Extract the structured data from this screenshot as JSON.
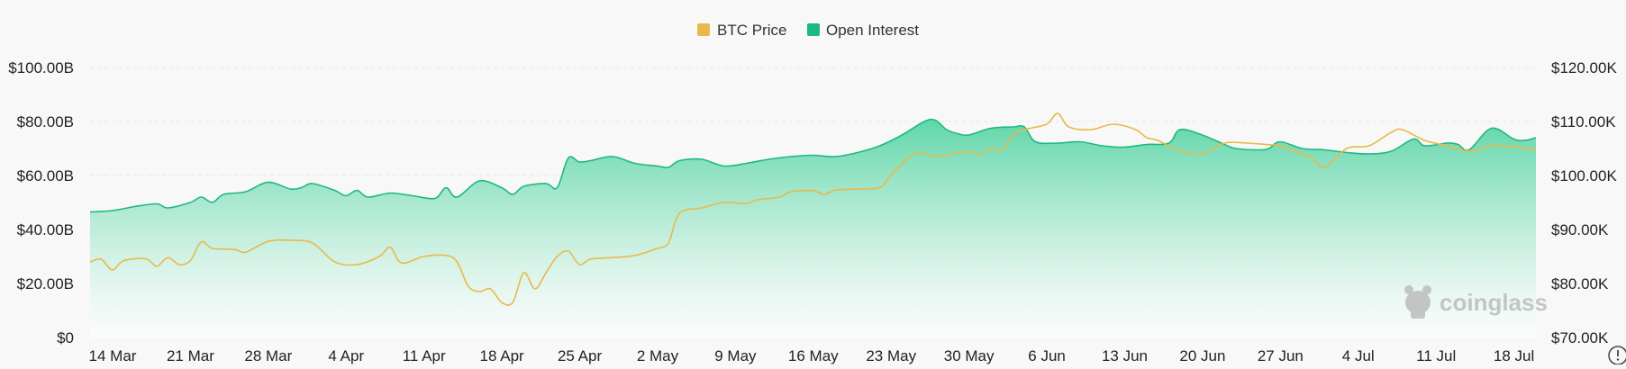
{
  "colors": {
    "btc_price": "#e8b94a",
    "open_interest_line": "#1db981",
    "open_interest_fill_top": "#5fd6a8",
    "open_interest_fill_bottom": "#ffffff",
    "grid": "#e6e6e6"
  },
  "watermark": {
    "text": "coinglass"
  },
  "chart_data": {
    "type": "area",
    "title": "",
    "legend": {
      "position": "top-center",
      "items": [
        "BTC Price",
        "Open Interest"
      ]
    },
    "grid": true,
    "x": [
      "14 Mar",
      "21 Mar",
      "28 Mar",
      "4 Apr",
      "11 Apr",
      "18 Apr",
      "25 Apr",
      "2 May",
      "9 May",
      "16 May",
      "23 May",
      "30 May",
      "6 Jun",
      "13 Jun",
      "20 Jun",
      "27 Jun",
      "4 Jul",
      "11 Jul",
      "18 Jul"
    ],
    "x_range": [
      "2025-03-14",
      "2025-07-22"
    ],
    "y_left": {
      "range": [
        0,
        100
      ],
      "ticks": [
        0,
        20,
        40,
        60,
        80,
        100
      ],
      "tick_labels": [
        "$0",
        "$20.00B",
        "$40.00B",
        "$60.00B",
        "$80.00B",
        "$100.00B"
      ]
    },
    "y_right": {
      "range": [
        70000,
        120000
      ],
      "ticks": [
        70000,
        80000,
        90000,
        100000,
        110000,
        120000
      ],
      "tick_labels": [
        "$70.00K",
        "$80.00K",
        "$90.00K",
        "$100.00K",
        "$110.00K",
        "$120.00K"
      ]
    },
    "series": [
      {
        "name": "Open Interest",
        "axis": "left",
        "unit": "B USD",
        "points": [
          [
            "2025-03-14",
            46.5
          ],
          [
            "2025-03-16",
            47.0
          ],
          [
            "2025-03-18",
            48.5
          ],
          [
            "2025-03-20",
            49.5
          ],
          [
            "2025-03-21",
            48.0
          ],
          [
            "2025-03-23",
            50.0
          ],
          [
            "2025-03-24",
            52.0
          ],
          [
            "2025-03-25",
            50.0
          ],
          [
            "2025-03-26",
            53.0
          ],
          [
            "2025-03-28",
            54.0
          ],
          [
            "2025-03-30",
            57.5
          ],
          [
            "2025-04-01",
            55.0
          ],
          [
            "2025-04-02",
            55.5
          ],
          [
            "2025-04-03",
            57.0
          ],
          [
            "2025-04-05",
            54.5
          ],
          [
            "2025-04-06",
            52.5
          ],
          [
            "2025-04-07",
            54.5
          ],
          [
            "2025-04-08",
            52.0
          ],
          [
            "2025-04-10",
            53.5
          ],
          [
            "2025-04-12",
            52.5
          ],
          [
            "2025-04-14",
            51.5
          ],
          [
            "2025-04-15",
            55.5
          ],
          [
            "2025-04-16",
            52.0
          ],
          [
            "2025-04-18",
            58.0
          ],
          [
            "2025-04-20",
            55.5
          ],
          [
            "2025-04-21",
            53.0
          ],
          [
            "2025-04-22",
            56.0
          ],
          [
            "2025-04-24",
            57.0
          ],
          [
            "2025-04-25",
            55.5
          ],
          [
            "2025-04-26",
            66.5
          ],
          [
            "2025-04-27",
            65.0
          ],
          [
            "2025-04-28",
            65.5
          ],
          [
            "2025-04-30",
            67.0
          ],
          [
            "2025-05-02",
            64.5
          ],
          [
            "2025-05-04",
            63.5
          ],
          [
            "2025-05-05",
            63.0
          ],
          [
            "2025-05-06",
            65.5
          ],
          [
            "2025-05-08",
            66.0
          ],
          [
            "2025-05-10",
            63.5
          ],
          [
            "2025-05-12",
            64.5
          ],
          [
            "2025-05-14",
            66.0
          ],
          [
            "2025-05-16",
            67.0
          ],
          [
            "2025-05-18",
            67.5
          ],
          [
            "2025-05-20",
            67.0
          ],
          [
            "2025-05-22",
            68.5
          ],
          [
            "2025-05-24",
            71.0
          ],
          [
            "2025-05-26",
            75.0
          ],
          [
            "2025-05-28",
            80.0
          ],
          [
            "2025-05-29",
            80.5
          ],
          [
            "2025-05-30",
            77.0
          ],
          [
            "2025-05-31",
            75.5
          ],
          [
            "2025-06-01",
            75.0
          ],
          [
            "2025-06-03",
            77.5
          ],
          [
            "2025-06-05",
            78.0
          ],
          [
            "2025-06-06",
            78.0
          ],
          [
            "2025-06-07",
            72.5
          ],
          [
            "2025-06-09",
            72.0
          ],
          [
            "2025-06-11",
            72.5
          ],
          [
            "2025-06-13",
            71.0
          ],
          [
            "2025-06-15",
            70.5
          ],
          [
            "2025-06-17",
            71.5
          ],
          [
            "2025-06-19",
            72.0
          ],
          [
            "2025-06-20",
            77.0
          ],
          [
            "2025-06-22",
            75.0
          ],
          [
            "2025-06-24",
            71.5
          ],
          [
            "2025-06-25",
            70.0
          ],
          [
            "2025-06-27",
            69.5
          ],
          [
            "2025-06-28",
            70.0
          ],
          [
            "2025-06-29",
            72.5
          ],
          [
            "2025-07-01",
            70.0
          ],
          [
            "2025-07-03",
            69.5
          ],
          [
            "2025-07-05",
            68.5
          ],
          [
            "2025-07-07",
            68.0
          ],
          [
            "2025-07-09",
            69.0
          ],
          [
            "2025-07-11",
            73.5
          ],
          [
            "2025-07-12",
            71.0
          ],
          [
            "2025-07-14",
            72.0
          ],
          [
            "2025-07-15",
            71.5
          ],
          [
            "2025-07-16",
            69.5
          ],
          [
            "2025-07-18",
            77.5
          ],
          [
            "2025-07-20",
            73.5
          ],
          [
            "2025-07-21",
            73.0
          ],
          [
            "2025-07-22",
            74.0
          ]
        ]
      },
      {
        "name": "BTC Price",
        "axis": "right",
        "unit": "USD",
        "points": [
          [
            "2025-03-14",
            84000
          ],
          [
            "2025-03-15",
            84500
          ],
          [
            "2025-03-16",
            82500
          ],
          [
            "2025-03-17",
            84200
          ],
          [
            "2025-03-19",
            84600
          ],
          [
            "2025-03-20",
            83200
          ],
          [
            "2025-03-21",
            84800
          ],
          [
            "2025-03-22",
            83500
          ],
          [
            "2025-03-23",
            84200
          ],
          [
            "2025-03-24",
            87700
          ],
          [
            "2025-03-25",
            86500
          ],
          [
            "2025-03-27",
            86300
          ],
          [
            "2025-03-28",
            85800
          ],
          [
            "2025-03-30",
            87800
          ],
          [
            "2025-04-01",
            88000
          ],
          [
            "2025-04-03",
            87500
          ],
          [
            "2025-04-05",
            84000
          ],
          [
            "2025-04-07",
            83500
          ],
          [
            "2025-04-09",
            85000
          ],
          [
            "2025-04-10",
            86700
          ],
          [
            "2025-04-11",
            83800
          ],
          [
            "2025-04-13",
            85000
          ],
          [
            "2025-04-15",
            85200
          ],
          [
            "2025-04-16",
            84000
          ],
          [
            "2025-04-17",
            79500
          ],
          [
            "2025-04-18",
            78500
          ],
          [
            "2025-04-19",
            79000
          ],
          [
            "2025-04-20",
            76500
          ],
          [
            "2025-04-21",
            76500
          ],
          [
            "2025-04-22",
            82000
          ],
          [
            "2025-04-23",
            79000
          ],
          [
            "2025-04-24",
            82000
          ],
          [
            "2025-04-25",
            85000
          ],
          [
            "2025-04-26",
            86000
          ],
          [
            "2025-04-27",
            83500
          ],
          [
            "2025-04-28",
            84500
          ],
          [
            "2025-04-30",
            84800
          ],
          [
            "2025-05-02",
            85200
          ],
          [
            "2025-05-04",
            86500
          ],
          [
            "2025-05-05",
            87500
          ],
          [
            "2025-05-06",
            93000
          ],
          [
            "2025-05-08",
            94000
          ],
          [
            "2025-05-10",
            95000
          ],
          [
            "2025-05-12",
            94800
          ],
          [
            "2025-05-13",
            95500
          ],
          [
            "2025-05-15",
            96000
          ],
          [
            "2025-05-16",
            97000
          ],
          [
            "2025-05-18",
            97200
          ],
          [
            "2025-05-19",
            96500
          ],
          [
            "2025-05-20",
            97300
          ],
          [
            "2025-05-22",
            97500
          ],
          [
            "2025-05-24",
            97800
          ],
          [
            "2025-05-25",
            100000
          ],
          [
            "2025-05-27",
            104000
          ],
          [
            "2025-05-28",
            104000
          ],
          [
            "2025-05-29",
            103500
          ],
          [
            "2025-05-30",
            103800
          ],
          [
            "2025-06-01",
            104500
          ],
          [
            "2025-06-02",
            103800
          ],
          [
            "2025-06-03",
            105000
          ],
          [
            "2025-06-04",
            104700
          ],
          [
            "2025-06-05",
            107500
          ],
          [
            "2025-06-06",
            108500
          ],
          [
            "2025-06-08",
            109500
          ],
          [
            "2025-06-09",
            111500
          ],
          [
            "2025-06-10",
            109000
          ],
          [
            "2025-06-12",
            108500
          ],
          [
            "2025-06-14",
            109500
          ],
          [
            "2025-06-16",
            108500
          ],
          [
            "2025-06-17",
            107000
          ],
          [
            "2025-06-18",
            106500
          ],
          [
            "2025-06-20",
            104500
          ],
          [
            "2025-06-22",
            104000
          ],
          [
            "2025-06-24",
            106000
          ],
          [
            "2025-06-26",
            106000
          ],
          [
            "2025-06-28",
            105700
          ],
          [
            "2025-06-29",
            105500
          ],
          [
            "2025-07-01",
            104000
          ],
          [
            "2025-07-02",
            103000
          ],
          [
            "2025-07-03",
            101500
          ],
          [
            "2025-07-05",
            105000
          ],
          [
            "2025-07-07",
            105500
          ],
          [
            "2025-07-09",
            108000
          ],
          [
            "2025-07-10",
            108500
          ],
          [
            "2025-07-12",
            106500
          ],
          [
            "2025-07-14",
            105500
          ],
          [
            "2025-07-16",
            104500
          ],
          [
            "2025-07-18",
            105500
          ],
          [
            "2025-07-20",
            105300
          ],
          [
            "2025-07-22",
            104800
          ]
        ]
      }
    ]
  }
}
